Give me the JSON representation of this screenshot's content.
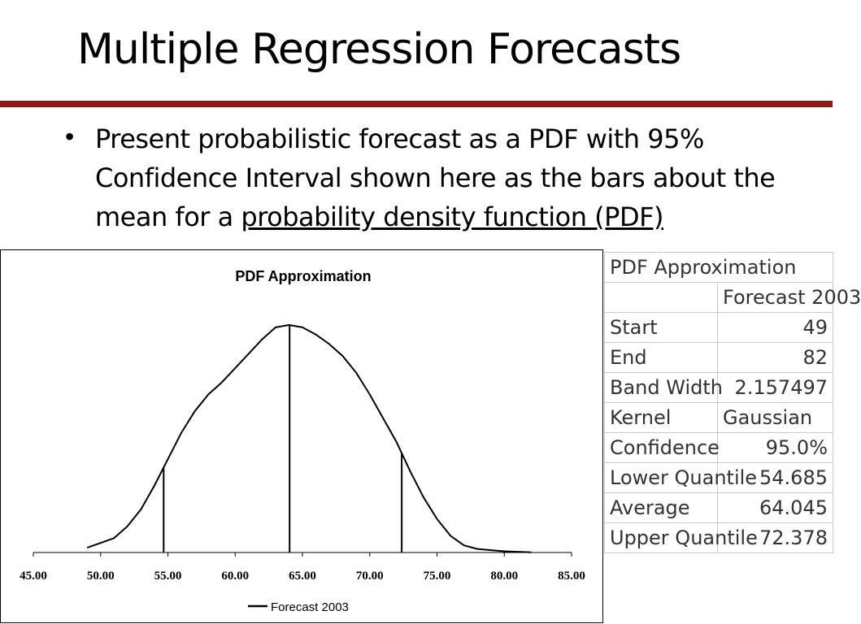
{
  "slide": {
    "title": "Multiple Regression Forecasts",
    "bullet_plain": "Present probabilistic forecast as a PDF with 95% Confidence Interval shown here as the bars about the mean for a ",
    "bullet_link": "probability density function (PDF)"
  },
  "colors": {
    "rule": "#8b1a1a"
  },
  "chart_data": {
    "type": "line",
    "title": "PDF Approximation",
    "xlabel": "",
    "ylabel": "",
    "xlim": [
      45,
      85
    ],
    "x_ticks": [
      "45.00",
      "50.00",
      "55.00",
      "60.00",
      "65.00",
      "70.00",
      "75.00",
      "80.00",
      "85.00"
    ],
    "grid": false,
    "legend_position": "bottom",
    "series": [
      {
        "name": "Forecast 2003",
        "x": [
          49,
          50,
          51,
          52,
          53,
          54,
          55,
          56,
          57,
          58,
          59,
          60,
          61,
          62,
          63,
          64,
          65,
          66,
          67,
          68,
          69,
          70,
          71,
          72,
          73,
          74,
          75,
          76,
          77,
          78,
          79,
          80,
          81,
          82
        ],
        "y": [
          0.002,
          0.004,
          0.006,
          0.011,
          0.018,
          0.028,
          0.039,
          0.05,
          0.059,
          0.066,
          0.071,
          0.077,
          0.083,
          0.089,
          0.094,
          0.095,
          0.094,
          0.091,
          0.087,
          0.082,
          0.075,
          0.066,
          0.056,
          0.046,
          0.034,
          0.023,
          0.014,
          0.007,
          0.003,
          0.0015,
          0.001,
          0.0005,
          0.0003,
          0.0001
        ]
      }
    ],
    "markers": [
      {
        "label": "Lower Quantile",
        "x": 54.685
      },
      {
        "label": "Average",
        "x": 64.045
      },
      {
        "label": "Upper Quantile",
        "x": 72.378
      }
    ]
  },
  "table": {
    "title": "PDF Approximation",
    "column_header": "Forecast 2003",
    "rows": [
      {
        "label": "Start",
        "value": "49"
      },
      {
        "label": "End",
        "value": "82"
      },
      {
        "label": "Band Width",
        "value": "2.157497"
      },
      {
        "label": "Kernel",
        "value": "Gaussian"
      },
      {
        "label": "Confidence",
        "value": "95.0%"
      },
      {
        "label": "Lower Quantile",
        "value": "54.685"
      },
      {
        "label": "Average",
        "value": "64.045"
      },
      {
        "label": "Upper Quantile",
        "value": "72.378"
      }
    ]
  }
}
